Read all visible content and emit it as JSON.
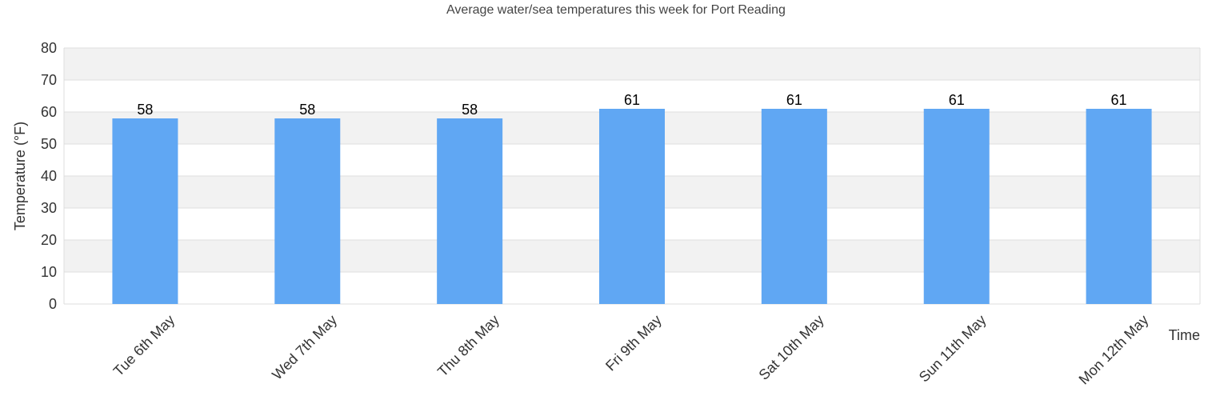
{
  "chart_data": {
    "type": "bar",
    "title": "Average water/sea temperatures this week for Port Reading",
    "xlabel": "Time",
    "ylabel": "Temperature (°F)",
    "categories": [
      "Tue 6th May",
      "Wed 7th May",
      "Thu 8th May",
      "Fri 9th May",
      "Sat 10th May",
      "Sun 11th May",
      "Mon 12th May"
    ],
    "values": [
      58,
      58,
      58,
      61,
      61,
      61,
      61
    ],
    "ylim": [
      0,
      80
    ],
    "yticks": [
      0,
      10,
      20,
      30,
      40,
      50,
      60,
      70,
      80
    ],
    "grid": true,
    "data_labels": true,
    "colors": {
      "bar": "#60a7f3",
      "band": "#f2f2f2",
      "gridline": "#dddddd"
    }
  }
}
